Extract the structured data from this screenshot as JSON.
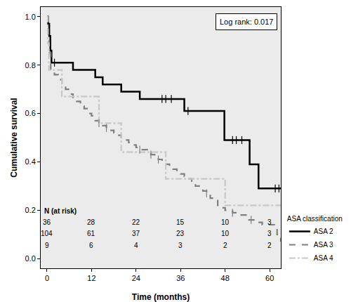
{
  "chart_data": {
    "type": "line",
    "xlabel": "Time (months)",
    "ylabel": "Cumulative survival",
    "xlim": [
      -1.7,
      63
    ],
    "ylim": [
      -0.04,
      1.04
    ],
    "xticks": [
      0,
      12,
      24,
      36,
      48,
      60
    ],
    "yticks": [
      {
        "value": 0,
        "label": "0.0"
      },
      0.2,
      0.4,
      0.6,
      0.8,
      {
        "value": 1,
        "label": "1.0"
      }
    ],
    "grid": false,
    "legend": "right",
    "legend_title": "ASA classification",
    "annotation": "Log rank: 0.017",
    "at_risk_title": "N (at risk)",
    "at_risk_times": [
      0,
      12,
      24,
      36,
      48,
      60
    ],
    "series": [
      {
        "name": "ASA 2",
        "color": "#000000",
        "line_style": "solid",
        "x": [
          0,
          0.3,
          0.6,
          0.9,
          1.2,
          7,
          13,
          15,
          20,
          25,
          37,
          47.8,
          54.6,
          57,
          63
        ],
        "values": [
          1,
          0.97,
          0.92,
          0.86,
          0.81,
          0.78,
          0.75,
          0.72,
          0.69,
          0.66,
          0.61,
          0.49,
          0.39,
          0.29,
          0.29
        ],
        "censored": [
          2,
          31,
          32,
          33.5,
          38,
          50,
          51,
          52.5,
          61.5,
          62.5
        ],
        "at_risk": [
          36,
          28,
          22,
          15,
          10,
          3
        ]
      },
      {
        "name": "ASA 3",
        "color": "#808080",
        "line_style": "dash",
        "x": [
          0,
          0.3,
          0.6,
          1,
          2,
          3,
          4,
          5,
          6,
          7,
          8,
          9,
          10,
          11,
          12,
          13,
          14,
          15,
          16,
          17,
          18,
          19,
          20,
          21,
          22,
          23,
          24,
          25,
          26,
          27,
          28,
          29,
          30,
          31,
          32,
          33,
          34,
          35,
          36,
          37,
          38,
          39,
          40,
          41,
          42,
          43,
          44,
          45,
          46,
          47,
          48,
          50,
          52,
          54,
          56,
          58,
          60,
          62,
          63
        ],
        "values": [
          1,
          0.92,
          0.85,
          0.78,
          0.76,
          0.74,
          0.72,
          0.7,
          0.68,
          0.66,
          0.65,
          0.63,
          0.62,
          0.6,
          0.59,
          0.57,
          0.56,
          0.55,
          0.54,
          0.53,
          0.52,
          0.51,
          0.5,
          0.49,
          0.48,
          0.47,
          0.46,
          0.45,
          0.45,
          0.44,
          0.43,
          0.42,
          0.41,
          0.4,
          0.39,
          0.38,
          0.37,
          0.36,
          0.35,
          0.34,
          0.33,
          0.32,
          0.3,
          0.29,
          0.28,
          0.27,
          0.25,
          0.24,
          0.22,
          0.21,
          0.2,
          0.19,
          0.18,
          0.16,
          0.15,
          0.14,
          0.14,
          0.1,
          0.07
        ],
        "censored": [
          14,
          16,
          25,
          28,
          30,
          43,
          50,
          55
        ],
        "at_risk": [
          104,
          61,
          37,
          23,
          10,
          3
        ]
      },
      {
        "name": "ASA 4",
        "color": "#c8c8c8",
        "line_style": "dashdot",
        "x": [
          0,
          0.2,
          0.5,
          4,
          14,
          20,
          32,
          48,
          63
        ],
        "values": [
          1,
          0.89,
          0.78,
          0.67,
          0.56,
          0.44,
          0.33,
          0.22,
          0.22
        ],
        "censored": [],
        "at_risk": [
          9,
          6,
          4,
          3,
          2,
          2
        ]
      }
    ]
  }
}
